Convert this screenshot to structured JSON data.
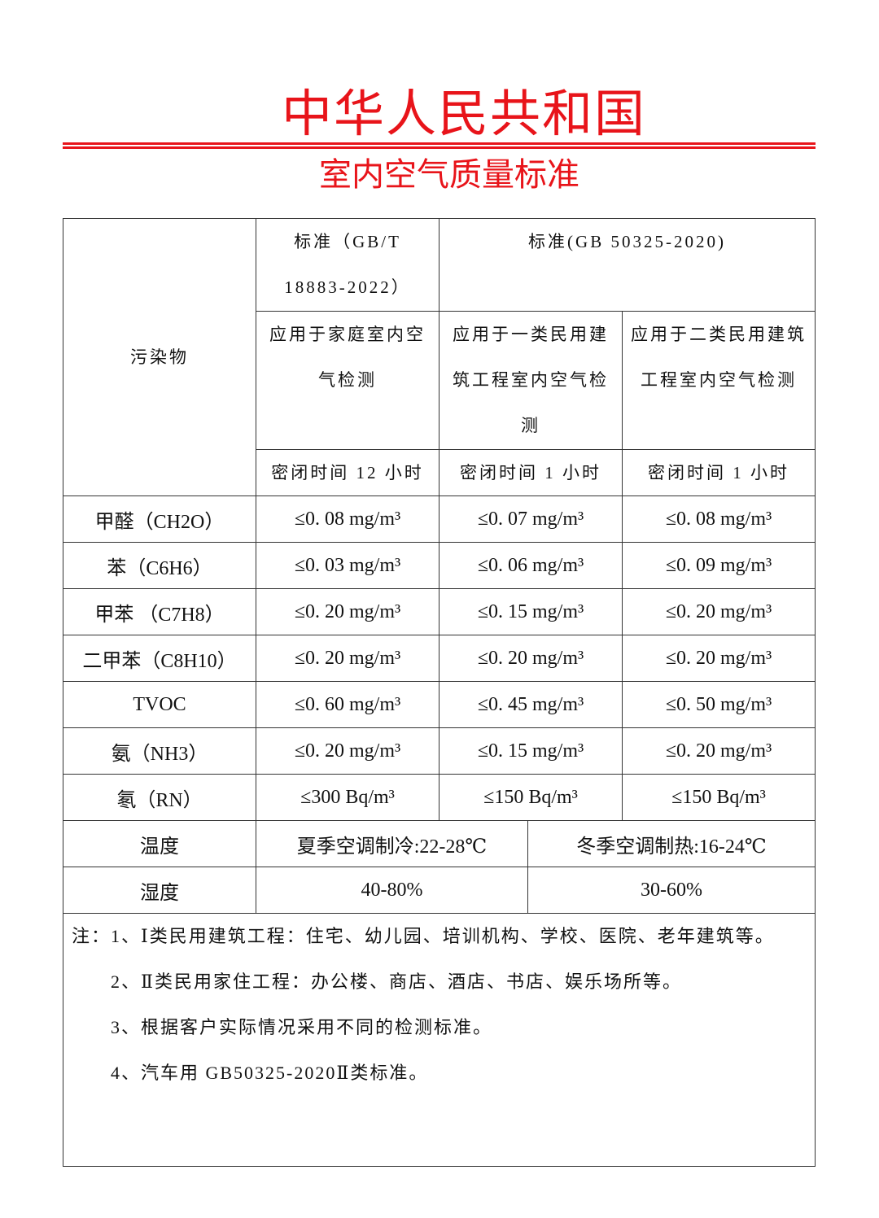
{
  "header": {
    "title": "中华人民共和国",
    "subtitle": "室内空气质量标准",
    "accent_color": "#e8141a"
  },
  "table": {
    "pollutant_header": "污染物",
    "std1_line1": "标准（GB/T",
    "std1_line2": "18883-2022）",
    "std2": "标准(GB 50325-2020)",
    "app_home": "应用于家庭室内空气检测",
    "app_class1": "应用于一类民用建筑工程室内空气检测",
    "app_class2": "应用于二类民用建筑工程室内空气检测",
    "seal_home": "密闭时间 12 小时",
    "seal_class1": "密闭时间 1 小时",
    "seal_class2": "密闭时间 1 小时",
    "rows": [
      {
        "name": "甲醛（CH2O）",
        "v": [
          "≤0. 08 mg/m³",
          "≤0. 07 mg/m³",
          "≤0. 08 mg/m³"
        ]
      },
      {
        "name": "苯（C6H6）",
        "v": [
          "≤0. 03 mg/m³",
          "≤0. 06 mg/m³",
          "≤0. 09 mg/m³"
        ]
      },
      {
        "name": "甲苯 （C7H8）",
        "v": [
          "≤0. 20 mg/m³",
          "≤0. 15 mg/m³",
          "≤0. 20 mg/m³"
        ]
      },
      {
        "name": "二甲苯（C8H10）",
        "v": [
          "≤0. 20 mg/m³",
          "≤0. 20 mg/m³",
          "≤0. 20 mg/m³"
        ]
      },
      {
        "name": "TVOC",
        "v": [
          "≤0. 60 mg/m³",
          "≤0. 45 mg/m³",
          "≤0. 50 mg/m³"
        ]
      },
      {
        "name": "氨（NH3）",
        "v": [
          "≤0. 20 mg/m³",
          "≤0. 15 mg/m³",
          "≤0. 20 mg/m³"
        ]
      },
      {
        "name": "氡（RN）",
        "v": [
          "≤300 Bq/m³",
          "≤150 Bq/m³",
          "≤150 Bq/m³"
        ]
      }
    ],
    "temperature": {
      "label": "温度",
      "summer": "夏季空调制冷:22-28℃",
      "winter": "冬季空调制热:16-24℃"
    },
    "humidity": {
      "label": "湿度",
      "summer": "40-80%",
      "winter": "30-60%"
    },
    "notes": [
      "注：1、Ⅰ类民用建筑工程：住宅、幼儿园、培训机构、学校、医院、老年建筑等。",
      "2、Ⅱ类民用家住工程：办公楼、商店、酒店、书店、娱乐场所等。",
      "3、根据客户实际情况采用不同的检测标准。",
      "4、汽车用 GB50325-2020Ⅱ类标准。"
    ]
  }
}
